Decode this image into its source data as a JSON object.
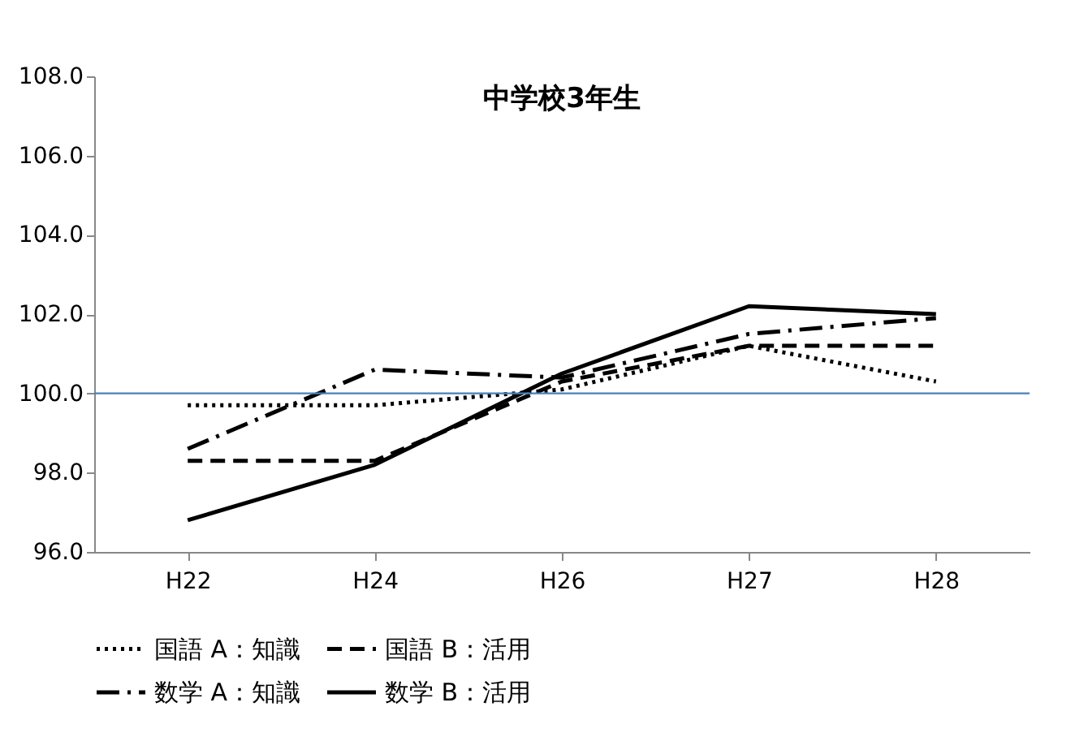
{
  "chart_data": {
    "type": "line",
    "title": "中学校3年生",
    "categories": [
      "H22",
      "H24",
      "H26",
      "H27",
      "H28"
    ],
    "series": [
      {
        "name": "国語 A：知識",
        "color": "#000000",
        "line_style": "dotted",
        "values": [
          99.7,
          99.7,
          100.1,
          101.2,
          100.3
        ]
      },
      {
        "name": "国語 B：活用",
        "color": "#000000",
        "line_style": "dashed",
        "values": [
          98.3,
          98.3,
          100.3,
          101.2,
          101.2
        ]
      },
      {
        "name": "数学 A：知識",
        "color": "#000000",
        "line_style": "dashdot",
        "values": [
          98.6,
          100.6,
          100.4,
          101.5,
          101.9
        ]
      },
      {
        "name": "数学 B：活用",
        "color": "#000000",
        "line_style": "solid",
        "values": [
          96.8,
          98.2,
          100.5,
          102.2,
          102.0
        ]
      }
    ],
    "ylim": [
      96,
      108
    ],
    "yticks": [
      {
        "value": 96,
        "label": "96.0"
      },
      {
        "value": 98,
        "label": "98.0"
      },
      {
        "value": 100,
        "label": "100.0"
      },
      {
        "value": 102,
        "label": "102.0"
      },
      {
        "value": 104,
        "label": "104.0"
      },
      {
        "value": 106,
        "label": "106.0"
      },
      {
        "value": 108,
        "label": "108.0"
      }
    ],
    "ref_lines": [
      {
        "axis": "y",
        "value": 100,
        "color": "#4a7ebb"
      }
    ],
    "grid": false,
    "legend": "bottom",
    "marker": "none"
  }
}
